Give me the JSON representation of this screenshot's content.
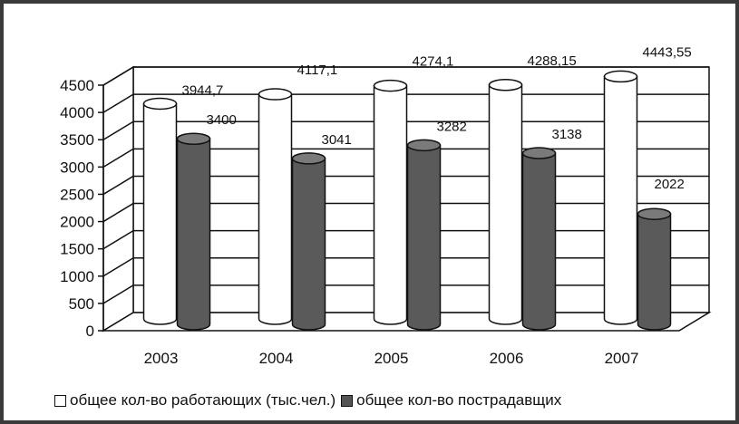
{
  "chart_data": {
    "type": "bar",
    "categories": [
      "2003",
      "2004",
      "2005",
      "2006",
      "2007"
    ],
    "series": [
      {
        "name": "общее кол-во работающих (тыс.чел.)",
        "values": [
          3944.7,
          4117.1,
          4274.1,
          4288.15,
          4443.55
        ],
        "labels": [
          "3944,7",
          "4117,1",
          "4274,1",
          "4288,15",
          "4443,55"
        ],
        "color": "#ffffff"
      },
      {
        "name": "общее кол-во пострадавщих",
        "values": [
          3400,
          3041,
          3282,
          3138,
          2022
        ],
        "labels": [
          "3400",
          "3041",
          "3282",
          "3138",
          "2022"
        ],
        "color": "#555555"
      }
    ],
    "y_ticks": [
      "0",
      "500",
      "1000",
      "1500",
      "2000",
      "2500",
      "3000",
      "3500",
      "4000",
      "4500"
    ],
    "ylim": [
      0,
      4500
    ],
    "grid": true,
    "style": "3d-cylinder",
    "legend_position": "bottom"
  },
  "legend": [
    {
      "label": "общее кол-во работающих (тыс.чел.)",
      "color": "#ffffff"
    },
    {
      "label": "общее кол-во пострадавщих",
      "color": "#555555"
    }
  ]
}
